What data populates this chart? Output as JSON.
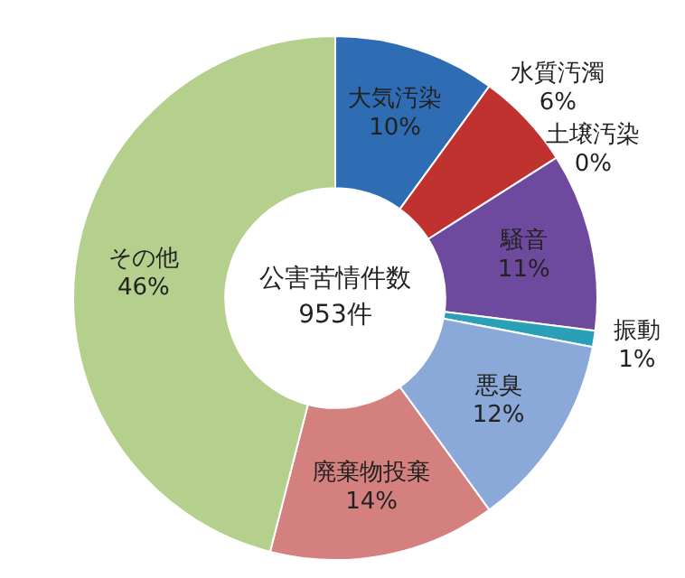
{
  "chart_data": {
    "type": "donut",
    "categories": [
      "大気汚染",
      "水質汚濁",
      "土壌汚染",
      "騒音",
      "振動",
      "悪臭",
      "廃棄物投棄",
      "その他"
    ],
    "values": [
      10,
      6,
      0,
      11,
      1,
      12,
      14,
      46
    ],
    "value_labels": [
      "10%",
      "6%",
      "0%",
      "11%",
      "1%",
      "12%",
      "14%",
      "46%"
    ],
    "colors": [
      "#2e6db4",
      "#c0322f",
      "#8a9a3a",
      "#6e4a9e",
      "#2a9fb8",
      "#8aa8d8",
      "#d4807e",
      "#b5cf8c"
    ],
    "annotations": [
      "公害苦情件数",
      "953件"
    ],
    "legend": false
  }
}
